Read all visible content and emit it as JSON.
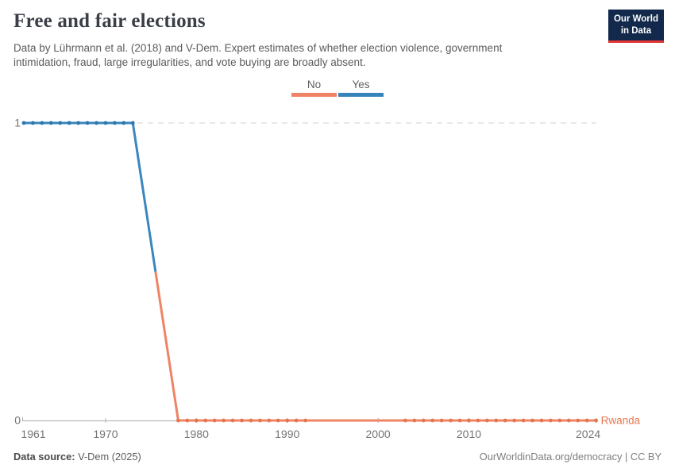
{
  "header": {
    "title": "Free and fair elections",
    "subtitle": "Data by Lührmann et al. (2018) and V-Dem. Expert estimates of whether election violence, government intimidation, fraud, large irregularities, and vote buying are broadly absent.",
    "logo": {
      "line1": "Our World",
      "line2": "in Data"
    }
  },
  "legend": {
    "items": [
      {
        "label": "No",
        "color": "#ee8465"
      },
      {
        "label": "Yes",
        "color": "#3783bc"
      }
    ]
  },
  "chart_data": {
    "type": "line",
    "title": "Free and fair elections",
    "entity": "Rwanda",
    "entity_color": "#e8764e",
    "xlim": [
      1961,
      2024
    ],
    "ylim": [
      0,
      1
    ],
    "grid": "horizontal dashed gridline at y=1, solid axis at y=0",
    "legend_position": "top-center",
    "x_ticks": [
      {
        "year": 1961,
        "label": "1961"
      },
      {
        "year": 1970,
        "label": "1970"
      },
      {
        "year": 1980,
        "label": "1980"
      },
      {
        "year": 1990,
        "label": "1990"
      },
      {
        "year": 2000,
        "label": "2000"
      },
      {
        "year": 2010,
        "label": "2010"
      },
      {
        "year": 2024,
        "label": "2024"
      }
    ],
    "y_ticks": [
      {
        "value": 0,
        "label": "0"
      },
      {
        "value": 1,
        "label": "1"
      }
    ],
    "series": [
      {
        "name": "Yes",
        "value": 1,
        "line_color": "#3a86be",
        "dot_color": "#2e76ac",
        "years": [
          1961,
          1962,
          1963,
          1964,
          1965,
          1966,
          1967,
          1968,
          1969,
          1970,
          1971,
          1972,
          1973
        ]
      },
      {
        "name": "No",
        "value": 0,
        "line_color": "#ee8465",
        "dot_color": "#e5764f",
        "years": [
          1978,
          1979,
          1980,
          1981,
          1982,
          1983,
          1984,
          1985,
          1986,
          1987,
          1988,
          1989,
          1990,
          1991,
          1992,
          2003,
          2004,
          2005,
          2006,
          2007,
          2008,
          2009,
          2010,
          2011,
          2012,
          2013,
          2014,
          2015,
          2016,
          2017,
          2018,
          2019,
          2020,
          2021,
          2022,
          2023,
          2024
        ]
      }
    ],
    "transition": {
      "from_year": 1973,
      "from_value": 1,
      "to_year": 1978,
      "to_value": 0
    }
  },
  "footer": {
    "source_label": "Data source:",
    "source_value": "V-Dem (2025)",
    "link": "OurWorldinData.org/democracy | CC BY"
  }
}
